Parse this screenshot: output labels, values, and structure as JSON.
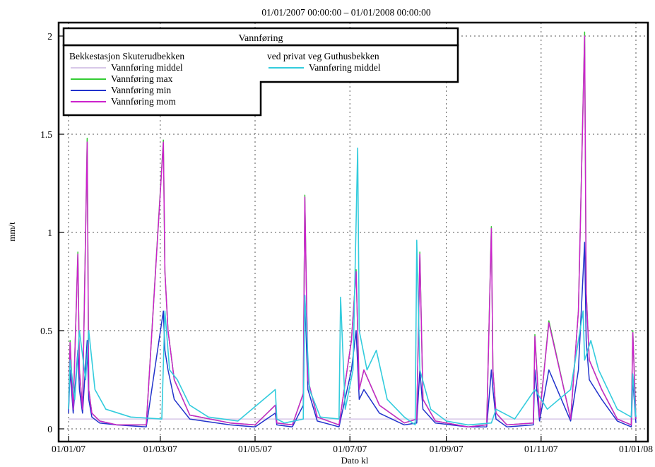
{
  "chart_data": {
    "type": "line",
    "title": "01/01/2007 00:00:00 – 01/01/2008 00:00:00",
    "xlabel": "Dato kl",
    "ylabel": "mm/t",
    "x_unit": "date",
    "xlim": [
      "2007-01-01",
      "2008-01-01"
    ],
    "ylim": [
      0,
      2.05
    ],
    "grid": true,
    "legend_placement": "top-left",
    "x_ticks": [
      "01/01/07",
      "01/03/07",
      "01/05/07",
      "01/07/07",
      "01/09/07",
      "01/11/07",
      "01/01/08"
    ],
    "x_tick_dates": [
      "2007-01-01",
      "2007-03-01",
      "2007-05-01",
      "2007-07-01",
      "2007-09-01",
      "2007-11-01",
      "2008-01-01"
    ],
    "y_ticks": [
      0,
      0.5,
      1,
      1.5,
      2
    ],
    "y_tick_labels": [
      "0",
      "0.5",
      "1",
      "1.5",
      "2"
    ],
    "legend": {
      "title": "Vannføring",
      "group1_title": "Bekkestasjon Skuterudbekken",
      "group2_title": "ved privat veg Guthusbekken"
    },
    "series": [
      {
        "name": "Vannføring middel",
        "group": "Bekkestasjon Skuterudbekken",
        "color": "#d8c8e8",
        "x": [
          "2007-01-01",
          "2007-03-01",
          "2007-07-01",
          "2007-12-01",
          "2008-01-01"
        ],
        "y": [
          0.05,
          0.05,
          0.05,
          0.05,
          0.05
        ]
      },
      {
        "name": "Vannføring max",
        "group": "Bekkestasjon Skuterudbekken",
        "color": "#33cc33",
        "x": [
          "2007-01-01",
          "2007-01-02",
          "2007-01-04",
          "2007-01-07",
          "2007-01-08",
          "2007-01-10",
          "2007-01-13",
          "2007-01-14",
          "2007-01-16",
          "2007-01-21",
          "2007-02-01",
          "2007-02-20",
          "2007-03-03",
          "2007-03-04",
          "2007-03-06",
          "2007-03-10",
          "2007-03-20",
          "2007-04-15",
          "2007-05-01",
          "2007-05-14",
          "2007-05-15",
          "2007-05-25",
          "2007-06-01",
          "2007-06-02",
          "2007-06-04",
          "2007-06-10",
          "2007-06-24",
          "2007-07-02",
          "2007-07-05",
          "2007-07-07",
          "2007-07-10",
          "2007-07-20",
          "2007-08-05",
          "2007-08-13",
          "2007-08-15",
          "2007-08-17",
          "2007-08-25",
          "2007-09-15",
          "2007-09-27",
          "2007-09-30",
          "2007-10-01",
          "2007-10-03",
          "2007-10-10",
          "2007-10-27",
          "2007-10-28",
          "2007-10-31",
          "2007-11-06",
          "2007-11-20",
          "2007-11-25",
          "2007-11-29",
          "2007-11-30",
          "2007-12-02",
          "2007-12-10",
          "2007-12-20",
          "2007-12-29",
          "2007-12-30",
          "2008-01-01"
        ],
        "y": [
          0.1,
          0.45,
          0.1,
          0.9,
          0.3,
          0.1,
          1.48,
          0.2,
          0.08,
          0.04,
          0.02,
          0.02,
          1.47,
          0.8,
          0.5,
          0.25,
          0.07,
          0.03,
          0.02,
          0.12,
          0.03,
          0.02,
          0.18,
          1.19,
          0.25,
          0.06,
          0.02,
          0.45,
          0.81,
          0.2,
          0.3,
          0.12,
          0.03,
          0.05,
          0.9,
          0.15,
          0.04,
          0.01,
          0.02,
          1.03,
          0.3,
          0.08,
          0.02,
          0.03,
          0.48,
          0.06,
          0.55,
          0.05,
          0.6,
          2.02,
          0.7,
          0.35,
          0.2,
          0.05,
          0.02,
          0.5,
          0.05
        ]
      },
      {
        "name": "Vannføring min",
        "group": "Bekkestasjon Skuterudbekken",
        "color": "#2233cc",
        "x": [
          "2007-01-01",
          "2007-01-02",
          "2007-01-04",
          "2007-01-07",
          "2007-01-08",
          "2007-01-10",
          "2007-01-13",
          "2007-01-14",
          "2007-01-16",
          "2007-01-21",
          "2007-02-01",
          "2007-02-20",
          "2007-03-03",
          "2007-03-04",
          "2007-03-06",
          "2007-03-10",
          "2007-03-20",
          "2007-04-15",
          "2007-05-01",
          "2007-05-14",
          "2007-05-15",
          "2007-05-25",
          "2007-06-01",
          "2007-06-02",
          "2007-06-04",
          "2007-06-10",
          "2007-06-24",
          "2007-07-02",
          "2007-07-05",
          "2007-07-07",
          "2007-07-10",
          "2007-07-20",
          "2007-08-05",
          "2007-08-13",
          "2007-08-15",
          "2007-08-17",
          "2007-08-25",
          "2007-09-15",
          "2007-09-27",
          "2007-09-30",
          "2007-10-01",
          "2007-10-03",
          "2007-10-10",
          "2007-10-27",
          "2007-10-28",
          "2007-10-31",
          "2007-11-06",
          "2007-11-20",
          "2007-11-25",
          "2007-11-29",
          "2007-11-30",
          "2007-12-02",
          "2007-12-10",
          "2007-12-20",
          "2007-12-29",
          "2007-12-30",
          "2008-01-01"
        ],
        "y": [
          0.08,
          0.3,
          0.08,
          0.4,
          0.2,
          0.08,
          0.45,
          0.15,
          0.06,
          0.03,
          0.02,
          0.01,
          0.6,
          0.4,
          0.3,
          0.15,
          0.05,
          0.02,
          0.01,
          0.08,
          0.02,
          0.01,
          0.12,
          0.68,
          0.2,
          0.04,
          0.01,
          0.3,
          0.5,
          0.15,
          0.2,
          0.08,
          0.02,
          0.03,
          0.3,
          0.1,
          0.03,
          0.01,
          0.01,
          0.3,
          0.2,
          0.05,
          0.01,
          0.02,
          0.3,
          0.04,
          0.3,
          0.04,
          0.3,
          0.95,
          0.45,
          0.25,
          0.15,
          0.04,
          0.01,
          0.25,
          0.03
        ]
      },
      {
        "name": "Vannføring mom",
        "group": "Bekkestasjon Skuterudbekken",
        "color": "#cc22cc",
        "x": [
          "2007-01-01",
          "2007-01-02",
          "2007-01-04",
          "2007-01-07",
          "2007-01-08",
          "2007-01-10",
          "2007-01-13",
          "2007-01-14",
          "2007-01-16",
          "2007-01-21",
          "2007-02-01",
          "2007-02-20",
          "2007-03-03",
          "2007-03-04",
          "2007-03-06",
          "2007-03-10",
          "2007-03-20",
          "2007-04-15",
          "2007-05-01",
          "2007-05-14",
          "2007-05-15",
          "2007-05-25",
          "2007-06-01",
          "2007-06-02",
          "2007-06-04",
          "2007-06-10",
          "2007-06-24",
          "2007-07-02",
          "2007-07-05",
          "2007-07-07",
          "2007-07-10",
          "2007-07-20",
          "2007-08-05",
          "2007-08-13",
          "2007-08-15",
          "2007-08-17",
          "2007-08-25",
          "2007-09-15",
          "2007-09-27",
          "2007-09-30",
          "2007-10-01",
          "2007-10-03",
          "2007-10-10",
          "2007-10-27",
          "2007-10-28",
          "2007-10-31",
          "2007-11-06",
          "2007-11-20",
          "2007-11-25",
          "2007-11-29",
          "2007-11-30",
          "2007-12-02",
          "2007-12-10",
          "2007-12-20",
          "2007-12-29",
          "2007-12-30",
          "2008-01-01"
        ],
        "y": [
          0.1,
          0.44,
          0.1,
          0.89,
          0.3,
          0.1,
          1.46,
          0.2,
          0.08,
          0.04,
          0.02,
          0.02,
          1.46,
          0.8,
          0.5,
          0.25,
          0.07,
          0.03,
          0.02,
          0.12,
          0.03,
          0.02,
          0.18,
          1.18,
          0.25,
          0.06,
          0.02,
          0.45,
          0.8,
          0.2,
          0.3,
          0.12,
          0.03,
          0.05,
          0.89,
          0.15,
          0.04,
          0.01,
          0.02,
          1.02,
          0.3,
          0.08,
          0.02,
          0.03,
          0.47,
          0.06,
          0.54,
          0.05,
          0.6,
          2.0,
          0.7,
          0.35,
          0.2,
          0.05,
          0.02,
          0.49,
          0.05
        ]
      },
      {
        "name": "Vannføring middel",
        "group": "ved privat veg Guthusbekken",
        "color": "#33ccdd",
        "x": [
          "2007-01-01",
          "2007-01-02",
          "2007-01-05",
          "2007-01-08",
          "2007-01-12",
          "2007-01-14",
          "2007-01-18",
          "2007-01-25",
          "2007-02-10",
          "2007-03-02",
          "2007-03-04",
          "2007-03-07",
          "2007-03-12",
          "2007-03-20",
          "2007-04-01",
          "2007-04-20",
          "2007-05-14",
          "2007-05-15",
          "2007-05-20",
          "2007-06-01",
          "2007-06-02",
          "2007-06-05",
          "2007-06-12",
          "2007-06-24",
          "2007-06-25",
          "2007-06-28",
          "2007-07-03",
          "2007-07-06",
          "2007-07-07",
          "2007-07-12",
          "2007-07-18",
          "2007-07-25",
          "2007-08-05",
          "2007-08-12",
          "2007-08-13",
          "2007-08-15",
          "2007-08-22",
          "2007-09-01",
          "2007-09-15",
          "2007-09-30",
          "2007-10-03",
          "2007-10-15",
          "2007-10-28",
          "2007-11-05",
          "2007-11-20",
          "2007-11-28",
          "2007-11-29",
          "2007-12-03",
          "2007-12-08",
          "2007-12-20",
          "2007-12-29",
          "2007-12-30",
          "2008-01-01"
        ],
        "y": [
          0.1,
          0.35,
          0.15,
          0.5,
          0.25,
          0.5,
          0.2,
          0.1,
          0.06,
          0.05,
          0.6,
          0.3,
          0.25,
          0.12,
          0.06,
          0.04,
          0.2,
          0.05,
          0.03,
          0.05,
          0.68,
          0.2,
          0.06,
          0.05,
          0.67,
          0.1,
          0.3,
          1.43,
          0.5,
          0.3,
          0.4,
          0.15,
          0.06,
          0.02,
          0.96,
          0.3,
          0.1,
          0.04,
          0.02,
          0.03,
          0.1,
          0.05,
          0.2,
          0.1,
          0.2,
          0.6,
          0.35,
          0.45,
          0.3,
          0.1,
          0.06,
          0.28,
          0.06
        ]
      }
    ]
  }
}
